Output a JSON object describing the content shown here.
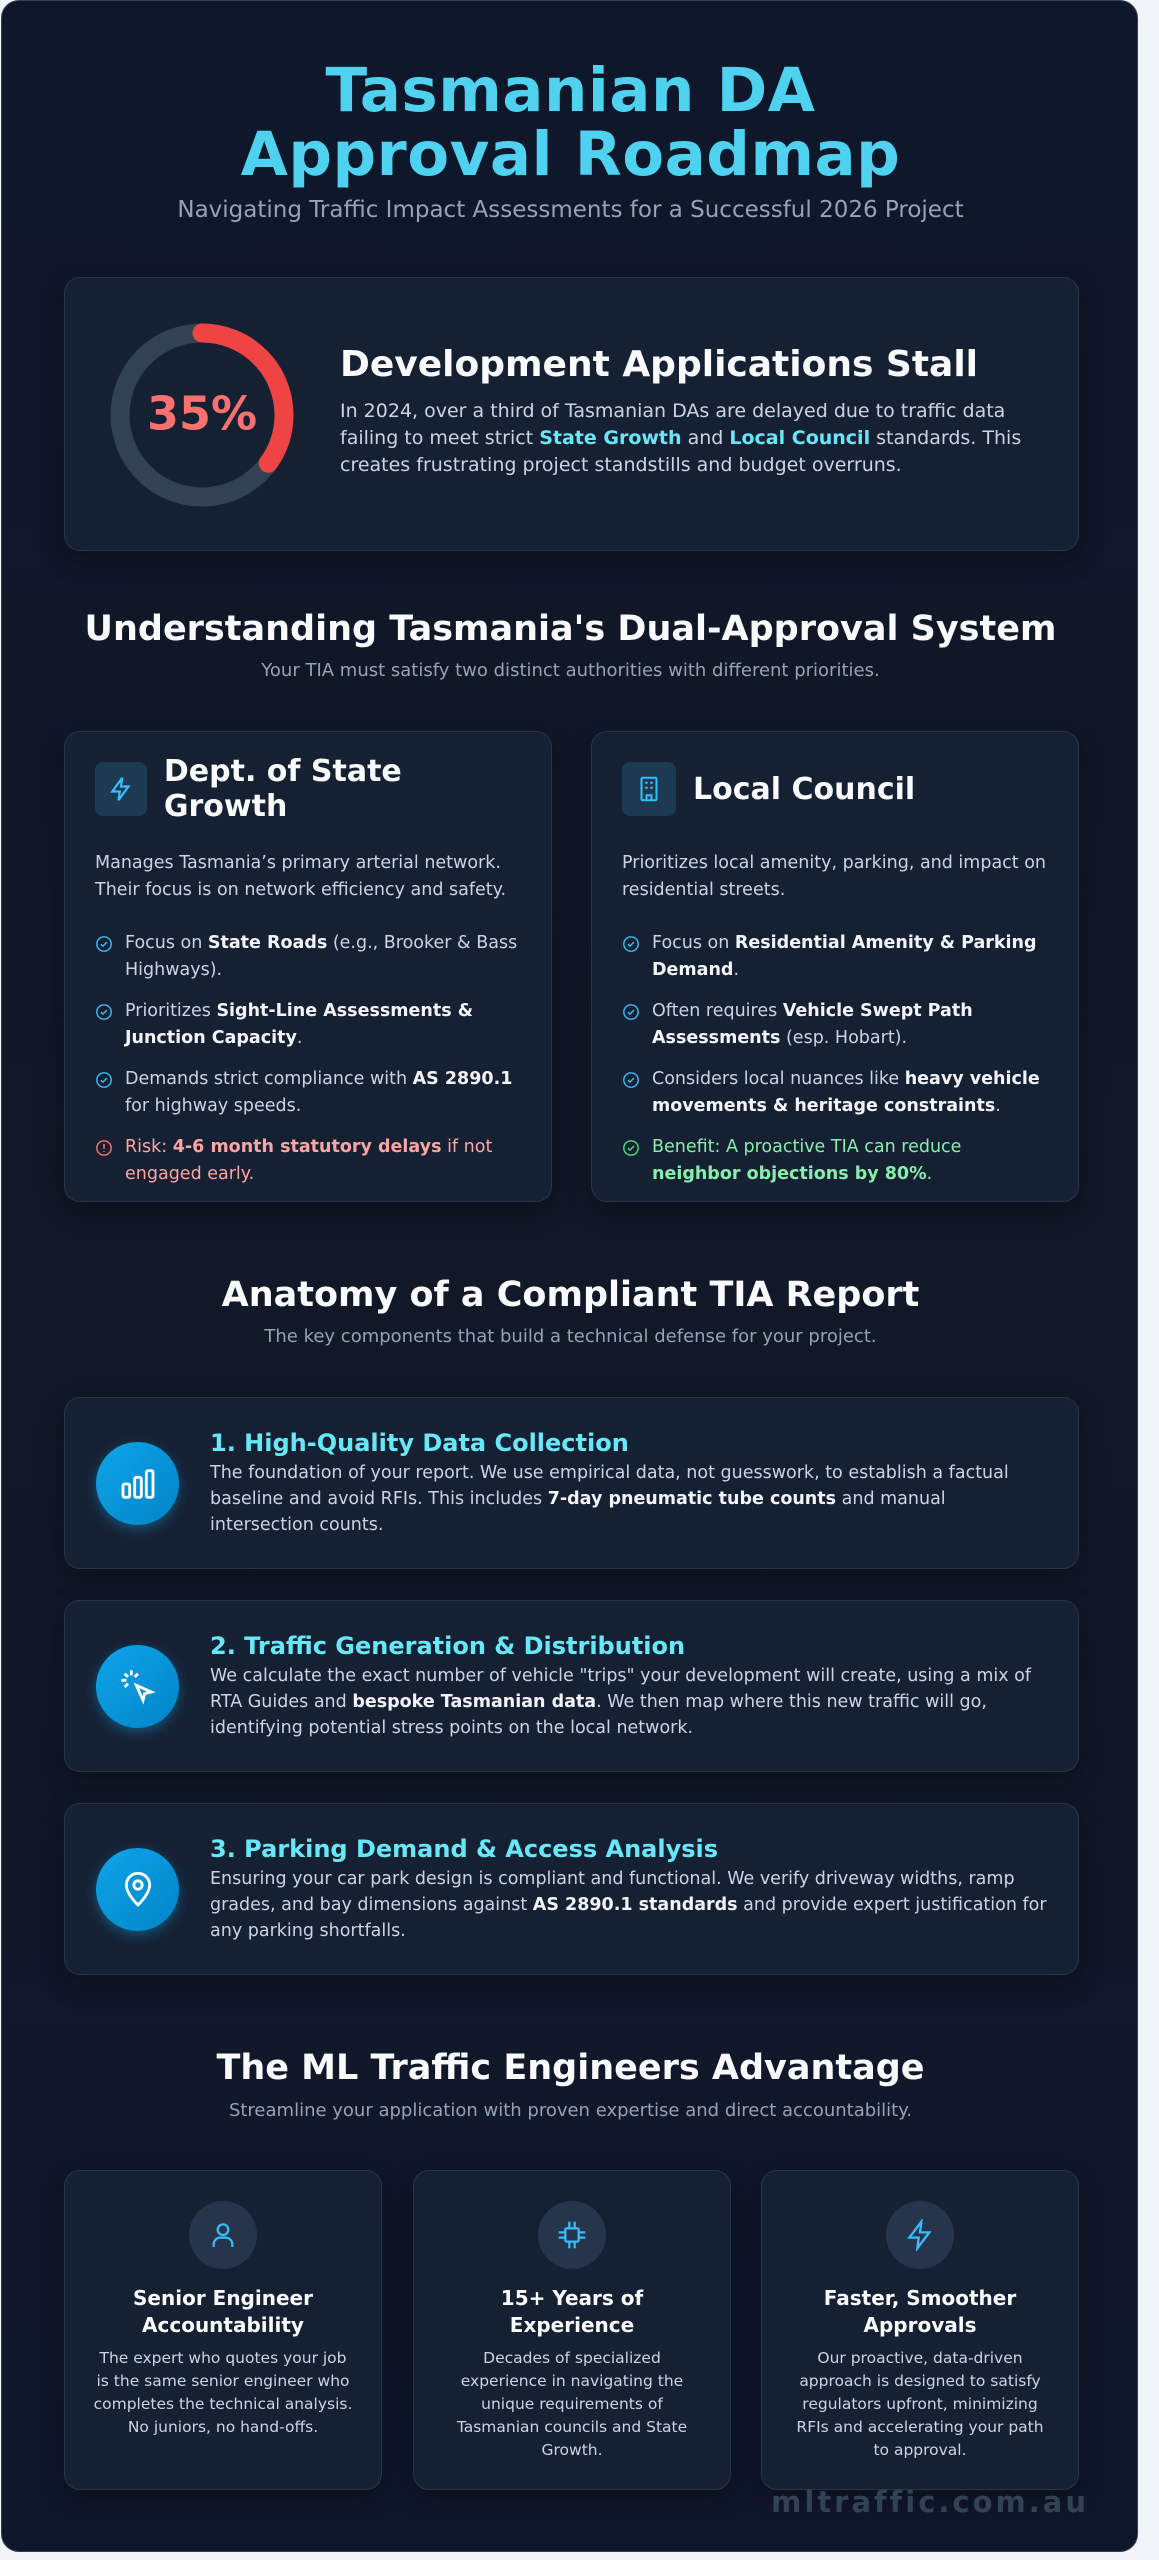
{
  "header": {
    "title": "Tasmanian DA Approval Roadmap",
    "subtitle": "Navigating Traffic Impact Assessments for a Successful 2026 Project"
  },
  "stall": {
    "stat": {
      "value": 35,
      "label": "35%"
    },
    "title": "Development Applications Stall",
    "text": [
      "In 2024, over a third of Tasmanian DAs are delayed due to traffic data failing to meet strict ",
      "State Growth",
      " and ",
      "Local Council",
      " standards. This creates frustrating project standstills and budget overruns."
    ]
  },
  "dual": {
    "title": "Understanding Tasmania's Dual-Approval System",
    "subtitle": "Your TIA must satisfy two distinct authorities with different priorities.",
    "cards": [
      {
        "title": "Dept. of State Growth",
        "intro": "Manages Tasmania’s primary arterial network. Their focus is on network efficiency and safety.",
        "items": [
          [
            "Focus on ",
            "State Roads",
            " (e.g., Brooker & Bass Highways)."
          ],
          [
            "Prioritizes ",
            "Sight-Line Assessments & Junction Capacity",
            "."
          ],
          [
            "Demands strict compliance with ",
            "AS 2890.1",
            " for highway speeds."
          ]
        ],
        "note": [
          "Risk: ",
          "4-6 month statutory delays",
          " if not engaged early."
        ]
      },
      {
        "title": "Local Council",
        "intro": "Prioritizes local amenity, parking, and impact on residential streets.",
        "items": [
          [
            "Focus on ",
            "Residential Amenity & Parking Demand",
            "."
          ],
          [
            "Often requires ",
            "Vehicle Swept Path Assessments",
            " (esp. Hobart)."
          ],
          [
            "Considers local nuances like ",
            "heavy vehicle movements & heritage constraints",
            "."
          ]
        ],
        "note": [
          "Benefit: A proactive TIA can reduce ",
          "neighbor objections by 80%",
          "."
        ]
      }
    ]
  },
  "anatomy": {
    "title": "Anatomy of a Compliant TIA Report",
    "subtitle": "The key components that build a technical defense for your project.",
    "steps": [
      {
        "title": "1. High-Quality Data Collection",
        "text": [
          "The foundation of your report. We use empirical data, not guesswork, to establish a factual baseline and avoid RFIs. This includes ",
          "7-day pneumatic tube counts",
          " and manual intersection counts."
        ]
      },
      {
        "title": "2. Traffic Generation & Distribution",
        "text": [
          "We calculate the exact number of vehicle \"trips\" your development will create, using a mix of RTA Guides and ",
          "bespoke Tasmanian data",
          ". We then map where this new traffic will go, identifying potential stress points on the local network."
        ]
      },
      {
        "title": "3. Parking Demand & Access Analysis",
        "text": [
          "Ensuring your car park design is compliant and functional. We verify driveway widths, ramp grades, and bay dimensions against ",
          "AS 2890.1 standards",
          " and provide expert justification for any parking shortfalls."
        ]
      }
    ]
  },
  "advantage": {
    "title": "The ML Traffic Engineers Advantage",
    "subtitle": "Streamline your application with proven expertise and direct accountability.",
    "cards": [
      {
        "title": "Senior Engineer Accountability",
        "text": "The expert who quotes your job is the same senior engineer who completes the technical analysis. No juniors, no hand-offs."
      },
      {
        "title": "15+ Years of Experience",
        "text": "Decades of specialized experience in navigating the unique requirements of Tasmanian councils and State Growth."
      },
      {
        "title": "Faster, Smoother Approvals",
        "text": "Our proactive, data-driven approach is designed to satisfy regulators upfront, minimizing RFIs and accelerating your path to approval."
      }
    ]
  },
  "footer": "mltraffic.com.au"
}
